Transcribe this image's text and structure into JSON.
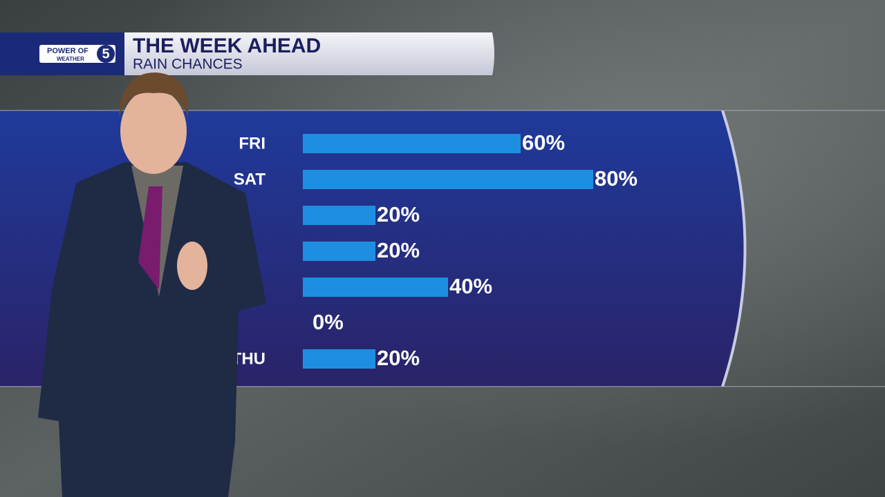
{
  "logo": {
    "top": "POWER OF",
    "number": "5",
    "bottom": "WEATHER"
  },
  "chart_data": {
    "type": "bar",
    "orientation": "horizontal",
    "title": "THE WEEK AHEAD",
    "subtitle": "RAIN CHANCES",
    "categories": [
      "FRI",
      "SAT",
      null,
      null,
      null,
      null,
      "THU"
    ],
    "values": [
      60,
      80,
      20,
      20,
      40,
      0,
      20
    ],
    "value_labels": [
      "60%",
      "80%",
      "20%",
      "20%",
      "40%",
      "0%",
      "20%"
    ],
    "color": "#1e8fe0"
  }
}
